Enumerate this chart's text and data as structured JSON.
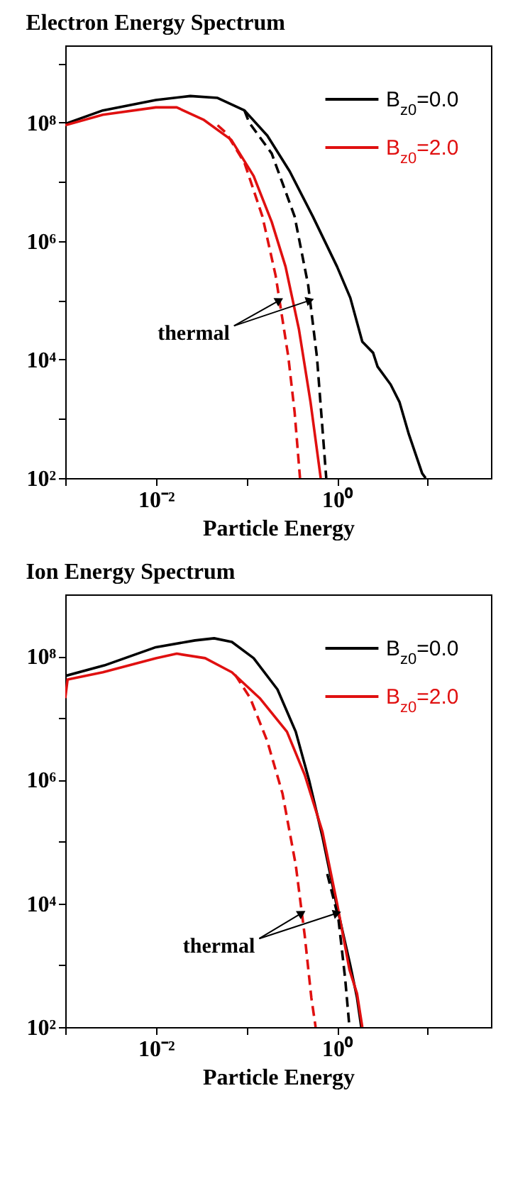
{
  "chart_data": [
    {
      "type": "line",
      "title": "Electron Energy Spectrum",
      "xlabel": "Particle Energy",
      "log": "xy",
      "legend": "top right",
      "xlim": [
        0.001,
        50
      ],
      "ylim": [
        100,
        2000000000.0
      ],
      "xticks": [
        {
          "value": 0.001,
          "label": null
        },
        {
          "value": 0.01,
          "label": "10⁻²"
        },
        {
          "value": 0.1,
          "label": null
        },
        {
          "value": 1,
          "label": "10⁰"
        },
        {
          "value": 10,
          "label": null
        }
      ],
      "yticks": [
        {
          "value": 100,
          "label": "10²"
        },
        {
          "value": 1000,
          "label": null
        },
        {
          "value": 10000,
          "label": "10⁴"
        },
        {
          "value": 100000,
          "label": null
        },
        {
          "value": 1000000,
          "label": "10⁶"
        },
        {
          "value": 10000000,
          "label": null
        },
        {
          "value": 100000000,
          "label": "10⁸"
        },
        {
          "value": 1000000000,
          "label": null
        }
      ],
      "series": [
        {
          "name": "B$_{z0}$=0.0",
          "color": "#000000",
          "x": [
            0.001,
            0.0026,
            0.01,
            0.024,
            0.048,
            0.095,
            0.17,
            0.3,
            0.54,
            1.0,
            1.4,
            1.9,
            2.5,
            2.8,
            3.9,
            4.9,
            6.2,
            8.7,
            9.5
          ],
          "values": [
            95000000.0,
            160000000.0,
            240000000.0,
            280000000.0,
            260000000.0,
            160000000.0,
            60000000.0,
            15000000.0,
            2600000.0,
            370000.0,
            110000.0,
            20000.0,
            13000.0,
            7600.0,
            3800.0,
            1900.0,
            550,
            120,
            100
          ]
        },
        {
          "name": "B$_{z0}$=2.0",
          "color": "#e01010",
          "x": [
            0.001,
            0.0026,
            0.01,
            0.017,
            0.034,
            0.068,
            0.12,
            0.19,
            0.27,
            0.38,
            0.51,
            0.66
          ],
          "values": [
            90000000.0,
            135000000.0,
            180000000.0,
            180000000.0,
            110000000.0,
            51000000.0,
            12500000.0,
            2100000.0,
            370000.0,
            32000.0,
            1900.0,
            100
          ]
        },
        {
          "color": "#000000",
          "line_style": "dashed",
          "x": [
            0.095,
            0.107,
            0.19,
            0.34,
            0.48,
            0.6,
            0.76
          ],
          "values": [
            160000000.0,
            100000000.0,
            30000000.0,
            2600000.0,
            180000.0,
            11000.0,
            100
          ]
        },
        {
          "color": "#e01010",
          "line_style": "dashed",
          "x": [
            0.048,
            0.06,
            0.095,
            0.15,
            0.21,
            0.29,
            0.34,
            0.39
          ],
          "values": [
            90000000.0,
            66000000.0,
            21000000.0,
            2600000.0,
            260000.0,
            11000.0,
            1300.0,
            100
          ]
        }
      ],
      "annotations": [
        {
          "text": "thermal",
          "x": 0.2,
          "y": 100000.0
        }
      ]
    },
    {
      "type": "line",
      "title": "Ion Energy Spectrum",
      "xlabel": "Particle Energy",
      "log": "xy",
      "legend": "top right",
      "xlim": [
        0.001,
        50
      ],
      "ylim": [
        100,
        1000000000.0
      ],
      "xticks": [
        {
          "value": 0.001,
          "label": null
        },
        {
          "value": 0.01,
          "label": "10⁻²"
        },
        {
          "value": 0.1,
          "label": null
        },
        {
          "value": 1,
          "label": "10⁰"
        },
        {
          "value": 10,
          "label": null
        }
      ],
      "yticks": [
        {
          "value": 100,
          "label": "10²"
        },
        {
          "value": 1000,
          "label": null
        },
        {
          "value": 10000,
          "label": "10⁴"
        },
        {
          "value": 100000,
          "label": null
        },
        {
          "value": 1000000,
          "label": "10⁶"
        },
        {
          "value": 10000000,
          "label": null
        },
        {
          "value": 100000000,
          "label": "10⁸"
        }
      ],
      "series": [
        {
          "name": "B$_{z0}$=0.0",
          "color": "#000000",
          "x": [
            0.001,
            0.0027,
            0.01,
            0.027,
            0.044,
            0.069,
            0.12,
            0.22,
            0.35,
            0.49,
            0.69,
            0.98,
            1.4,
            1.66,
            1.85
          ],
          "values": [
            48000000.0,
            71000000.0,
            140000000.0,
            180000000.0,
            195000000.0,
            170000000.0,
            93000000.0,
            29000000.0,
            6000000.0,
            1000000.0,
            120000.0,
            10000.0,
            1000.0,
            300,
            100
          ]
        },
        {
          "name": "B$_{z0}$=2.0",
          "color": "#e01010",
          "x": [
            0.001,
            0.00106,
            0.0026,
            0.01,
            0.017,
            0.035,
            0.069,
            0.14,
            0.28,
            0.44,
            0.69,
            1.0,
            1.37,
            1.66,
            1.9
          ],
          "values": [
            21000000.0,
            42000000.0,
            55000000.0,
            93000000.0,
            110000000.0,
            93000000.0,
            55000000.0,
            21000000.0,
            6000000.0,
            1200000.0,
            145000.0,
            10000.0,
            850,
            350,
            100
          ]
        },
        {
          "color": "#000000",
          "line_style": "dashed",
          "x": [
            0.78,
            1.03,
            1.23,
            1.37
          ],
          "values": [
            30000.0,
            6000.0,
            600,
            100
          ]
        },
        {
          "color": "#e01010",
          "line_style": "dashed",
          "x": [
            0.075,
            0.11,
            0.17,
            0.25,
            0.35,
            0.44,
            0.52,
            0.58
          ],
          "values": [
            50000000.0,
            21000000.0,
            4200000.0,
            600000.0,
            42000.0,
            3000.0,
            300,
            100
          ]
        }
      ],
      "annotations": [
        {
          "text": "thermal",
          "x": 0.38,
          "y": 7000.0
        }
      ]
    }
  ]
}
